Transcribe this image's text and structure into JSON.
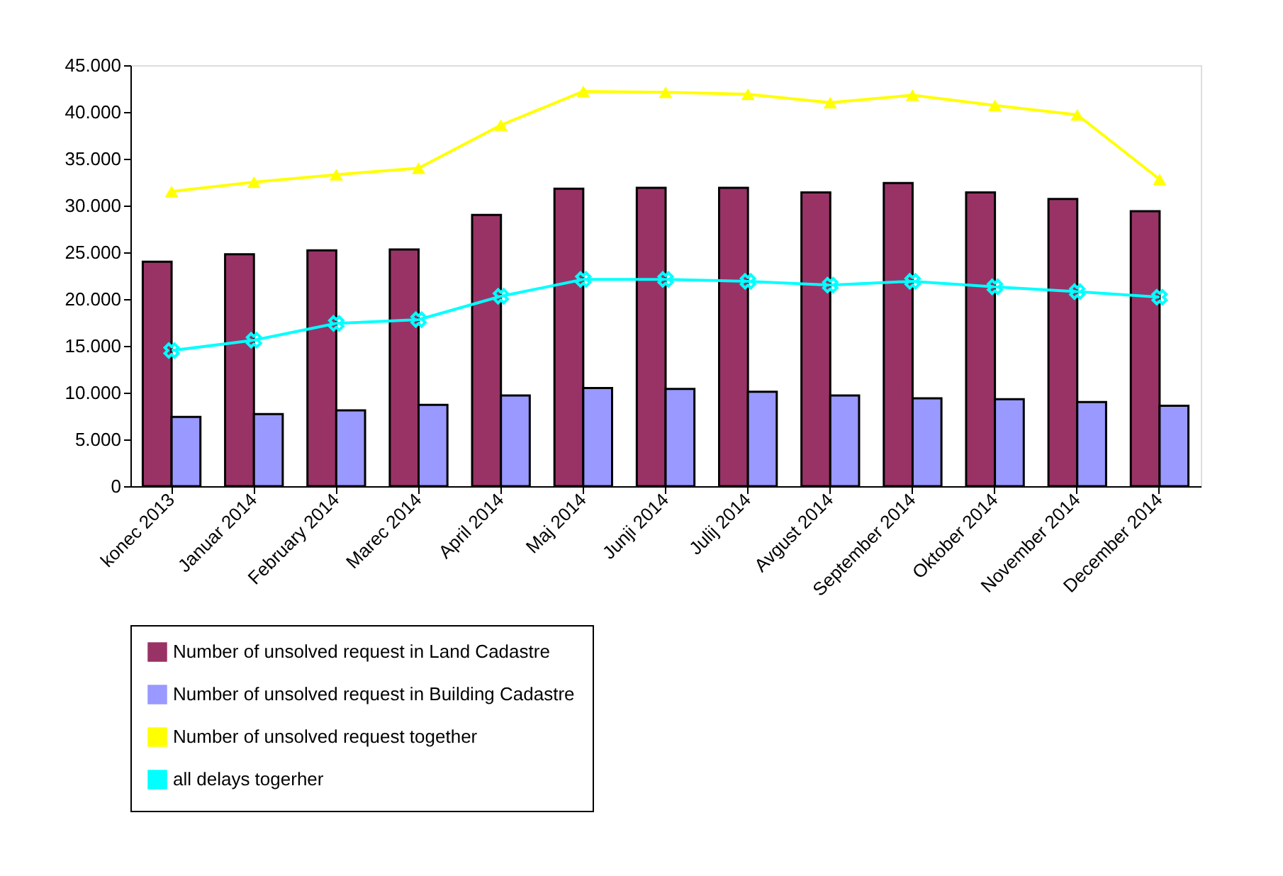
{
  "chart_data": {
    "type": "bar",
    "categories": [
      "konec 2013",
      "Januar 2014",
      "February 2014",
      "Marec 2014",
      "April  2014",
      "Maj 2014",
      "Junji 2014",
      "Julij 2014",
      "Avgust 2014",
      "September 2014",
      "Oktober 2014",
      "November 2014",
      "December 2014"
    ],
    "series": [
      {
        "name": "Number of unsolved request in Land Cadastre",
        "color": "#993366",
        "values": [
          24000,
          24800,
          25200,
          25300,
          29000,
          31800,
          31900,
          31900,
          31400,
          32400,
          31400,
          30700,
          29400
        ]
      },
      {
        "name": "Number of unsolved request in Building Cadastre",
        "color": "#9999ff",
        "values": [
          7400,
          7700,
          8100,
          8700,
          9700,
          10500,
          10400,
          10100,
          9700,
          9400,
          9300,
          9000,
          8600
        ]
      },
      {
        "name": "Number of unsolved request together",
        "type": "line",
        "marker": "triangle",
        "color": "#ffff00",
        "values": [
          31500,
          32500,
          33300,
          34000,
          38600,
          42200,
          42100,
          41900,
          41000,
          41800,
          40700,
          39700,
          32800
        ]
      },
      {
        "name": "all delays togerher",
        "type": "line",
        "marker": "cross",
        "color": "#00ffff",
        "values": [
          14500,
          15600,
          17400,
          17800,
          20300,
          22100,
          22100,
          21900,
          21500,
          21900,
          21300,
          20800,
          20200
        ]
      }
    ],
    "ylim": [
      0,
      45000
    ],
    "yticks": [
      {
        "value": 0,
        "label": "0"
      },
      {
        "value": 5000,
        "label": "5.000"
      },
      {
        "value": 10000,
        "label": "10.000"
      },
      {
        "value": 15000,
        "label": "15.000"
      },
      {
        "value": 20000,
        "label": "20.000"
      },
      {
        "value": 25000,
        "label": "25.000"
      },
      {
        "value": 30000,
        "label": "30.000"
      },
      {
        "value": 35000,
        "label": "35.000"
      },
      {
        "value": 40000,
        "label": "40.000"
      },
      {
        "value": 45000,
        "label": "45.000"
      }
    ],
    "grid": false,
    "legend": "bottom"
  }
}
